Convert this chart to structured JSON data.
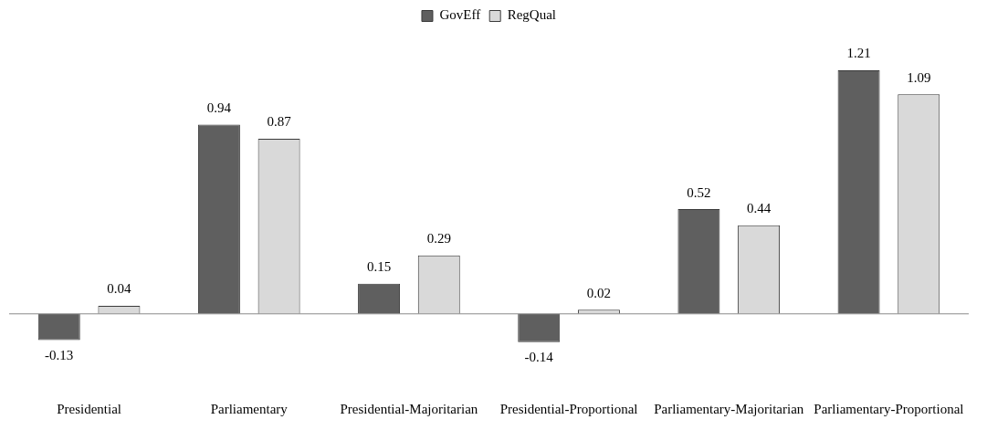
{
  "chart_data": {
    "type": "bar",
    "categories": [
      "Presidential",
      "Parliamentary",
      "Presidential-Majoritarian",
      "Presidential-Proportional",
      "Parliamentary-Majoritarian",
      "Parliamentary-Proportional"
    ],
    "series": [
      {
        "name": "GovEff",
        "color": "#5f5f5f",
        "values": [
          -0.13,
          0.94,
          0.15,
          -0.14,
          0.52,
          1.21
        ]
      },
      {
        "name": "RegQual",
        "color": "#d9d9d9",
        "values": [
          0.04,
          0.87,
          0.29,
          0.02,
          0.44,
          1.09
        ]
      }
    ],
    "data_labels": true,
    "legend": "top",
    "grid": false
  }
}
